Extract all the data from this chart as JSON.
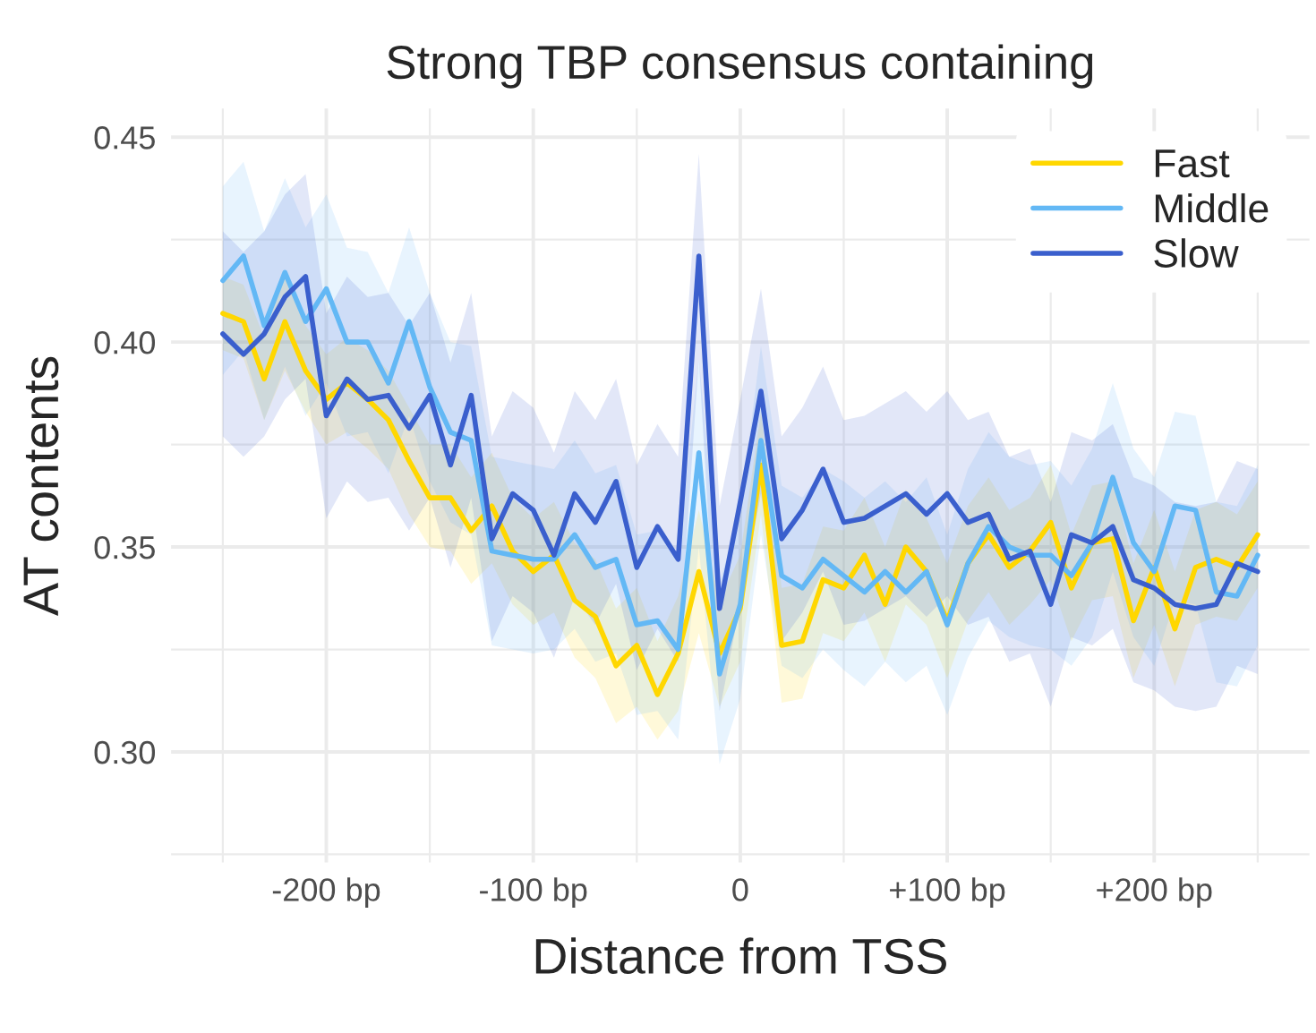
{
  "chart_data": {
    "type": "line",
    "title": "Strong TBP consensus containing",
    "xlabel": "Distance from TSS",
    "ylabel": "AT contents",
    "x": [
      -250,
      -240,
      -230,
      -220,
      -210,
      -200,
      -190,
      -180,
      -170,
      -160,
      -150,
      -140,
      -130,
      -120,
      -110,
      -100,
      -90,
      -80,
      -70,
      -60,
      -50,
      -40,
      -30,
      -20,
      -10,
      0,
      10,
      20,
      30,
      40,
      50,
      60,
      70,
      80,
      90,
      100,
      110,
      120,
      130,
      140,
      150,
      160,
      170,
      180,
      190,
      200,
      210,
      220,
      230,
      240,
      250
    ],
    "xlim": [
      -275,
      275
    ],
    "xticks": [
      {
        "value": -200,
        "label": "-200 bp"
      },
      {
        "value": -100,
        "label": "-100 bp"
      },
      0,
      {
        "value": 100,
        "label": "+100 bp"
      },
      {
        "value": 200,
        "label": "+200 bp"
      }
    ],
    "ylim": [
      0.273,
      0.457
    ],
    "yticks": [
      {
        "value": 0.3,
        "label": "0.30"
      },
      {
        "value": 0.35,
        "label": "0.35"
      },
      {
        "value": 0.4,
        "label": "0.40"
      },
      {
        "value": 0.45,
        "label": "0.45"
      }
    ],
    "grid": true,
    "legend": "top right",
    "series": [
      {
        "name": "Fast",
        "color": "#ffd700",
        "values": [
          0.407,
          0.405,
          0.391,
          0.405,
          0.393,
          0.386,
          0.39,
          0.386,
          0.381,
          0.371,
          0.362,
          0.362,
          0.354,
          0.36,
          0.349,
          0.344,
          0.348,
          0.337,
          0.333,
          0.321,
          0.326,
          0.314,
          0.324,
          0.344,
          0.324,
          0.335,
          0.37,
          0.326,
          0.327,
          0.342,
          0.34,
          0.348,
          0.336,
          0.35,
          0.344,
          0.332,
          0.346,
          0.353,
          0.345,
          0.349,
          0.356,
          0.34,
          0.351,
          0.352,
          0.332,
          0.345,
          0.33,
          0.345,
          0.347,
          0.345,
          0.353
        ],
        "lower": [
          0.398,
          0.396,
          0.381,
          0.393,
          0.383,
          0.375,
          0.378,
          0.374,
          0.369,
          0.358,
          0.35,
          0.349,
          0.341,
          0.346,
          0.336,
          0.331,
          0.334,
          0.323,
          0.318,
          0.307,
          0.311,
          0.303,
          0.31,
          0.329,
          0.311,
          0.322,
          0.358,
          0.312,
          0.313,
          0.329,
          0.327,
          0.334,
          0.322,
          0.336,
          0.331,
          0.318,
          0.332,
          0.339,
          0.331,
          0.336,
          0.342,
          0.327,
          0.337,
          0.338,
          0.318,
          0.331,
          0.316,
          0.331,
          0.333,
          0.332,
          0.34
        ],
        "upper": [
          0.416,
          0.414,
          0.401,
          0.417,
          0.404,
          0.397,
          0.401,
          0.398,
          0.393,
          0.384,
          0.375,
          0.375,
          0.367,
          0.373,
          0.362,
          0.357,
          0.361,
          0.351,
          0.347,
          0.335,
          0.34,
          0.327,
          0.338,
          0.359,
          0.337,
          0.348,
          0.383,
          0.34,
          0.341,
          0.355,
          0.354,
          0.362,
          0.35,
          0.364,
          0.357,
          0.346,
          0.36,
          0.367,
          0.359,
          0.362,
          0.37,
          0.353,
          0.365,
          0.366,
          0.346,
          0.359,
          0.344,
          0.359,
          0.361,
          0.358,
          0.366
        ]
      },
      {
        "name": "Middle",
        "color": "#63b8f5",
        "values": [
          0.415,
          0.421,
          0.404,
          0.417,
          0.405,
          0.413,
          0.4,
          0.4,
          0.39,
          0.405,
          0.389,
          0.378,
          0.376,
          0.349,
          0.348,
          0.347,
          0.347,
          0.353,
          0.345,
          0.347,
          0.331,
          0.332,
          0.325,
          0.373,
          0.319,
          0.336,
          0.376,
          0.343,
          0.34,
          0.347,
          0.343,
          0.339,
          0.344,
          0.339,
          0.344,
          0.331,
          0.346,
          0.355,
          0.35,
          0.348,
          0.348,
          0.343,
          0.351,
          0.367,
          0.351,
          0.344,
          0.36,
          0.359,
          0.339,
          0.338,
          0.348
        ],
        "lower": [
          0.392,
          0.398,
          0.381,
          0.394,
          0.382,
          0.39,
          0.377,
          0.378,
          0.368,
          0.382,
          0.366,
          0.356,
          0.353,
          0.326,
          0.325,
          0.324,
          0.325,
          0.33,
          0.322,
          0.324,
          0.309,
          0.31,
          0.303,
          0.35,
          0.297,
          0.313,
          0.353,
          0.321,
          0.318,
          0.325,
          0.32,
          0.316,
          0.322,
          0.317,
          0.321,
          0.309,
          0.323,
          0.332,
          0.328,
          0.326,
          0.325,
          0.321,
          0.328,
          0.344,
          0.328,
          0.321,
          0.337,
          0.336,
          0.317,
          0.316,
          0.326
        ],
        "upper": [
          0.438,
          0.444,
          0.427,
          0.44,
          0.428,
          0.436,
          0.423,
          0.422,
          0.412,
          0.428,
          0.412,
          0.4,
          0.399,
          0.372,
          0.371,
          0.37,
          0.369,
          0.376,
          0.368,
          0.37,
          0.353,
          0.354,
          0.347,
          0.396,
          0.341,
          0.359,
          0.399,
          0.365,
          0.362,
          0.369,
          0.366,
          0.362,
          0.366,
          0.361,
          0.367,
          0.353,
          0.369,
          0.378,
          0.372,
          0.37,
          0.371,
          0.365,
          0.374,
          0.39,
          0.374,
          0.367,
          0.383,
          0.382,
          0.361,
          0.36,
          0.37
        ]
      },
      {
        "name": "Slow",
        "color": "#3a5fcd",
        "values": [
          0.402,
          0.397,
          0.402,
          0.411,
          0.416,
          0.382,
          0.391,
          0.386,
          0.387,
          0.379,
          0.387,
          0.37,
          0.387,
          0.352,
          0.363,
          0.359,
          0.348,
          0.363,
          0.356,
          0.366,
          0.345,
          0.355,
          0.347,
          0.421,
          0.335,
          0.361,
          0.388,
          0.352,
          0.359,
          0.369,
          0.356,
          0.357,
          0.36,
          0.363,
          0.358,
          0.363,
          0.356,
          0.358,
          0.347,
          0.349,
          0.336,
          0.353,
          0.351,
          0.355,
          0.342,
          0.34,
          0.336,
          0.335,
          0.336,
          0.346,
          0.344
        ],
        "lower": [
          0.377,
          0.372,
          0.377,
          0.386,
          0.391,
          0.357,
          0.366,
          0.361,
          0.362,
          0.354,
          0.362,
          0.345,
          0.362,
          0.327,
          0.338,
          0.334,
          0.323,
          0.338,
          0.331,
          0.341,
          0.32,
          0.33,
          0.322,
          0.396,
          0.31,
          0.336,
          0.363,
          0.327,
          0.334,
          0.344,
          0.331,
          0.332,
          0.335,
          0.338,
          0.333,
          0.338,
          0.331,
          0.333,
          0.322,
          0.324,
          0.311,
          0.328,
          0.326,
          0.33,
          0.317,
          0.315,
          0.311,
          0.31,
          0.311,
          0.321,
          0.319
        ],
        "upper": [
          0.427,
          0.422,
          0.427,
          0.436,
          0.441,
          0.407,
          0.416,
          0.411,
          0.412,
          0.404,
          0.412,
          0.395,
          0.412,
          0.377,
          0.388,
          0.384,
          0.373,
          0.388,
          0.381,
          0.391,
          0.37,
          0.38,
          0.372,
          0.446,
          0.36,
          0.386,
          0.413,
          0.377,
          0.384,
          0.394,
          0.381,
          0.382,
          0.385,
          0.388,
          0.383,
          0.388,
          0.381,
          0.383,
          0.372,
          0.374,
          0.361,
          0.378,
          0.376,
          0.38,
          0.367,
          0.365,
          0.361,
          0.36,
          0.361,
          0.371,
          0.369
        ]
      }
    ]
  }
}
